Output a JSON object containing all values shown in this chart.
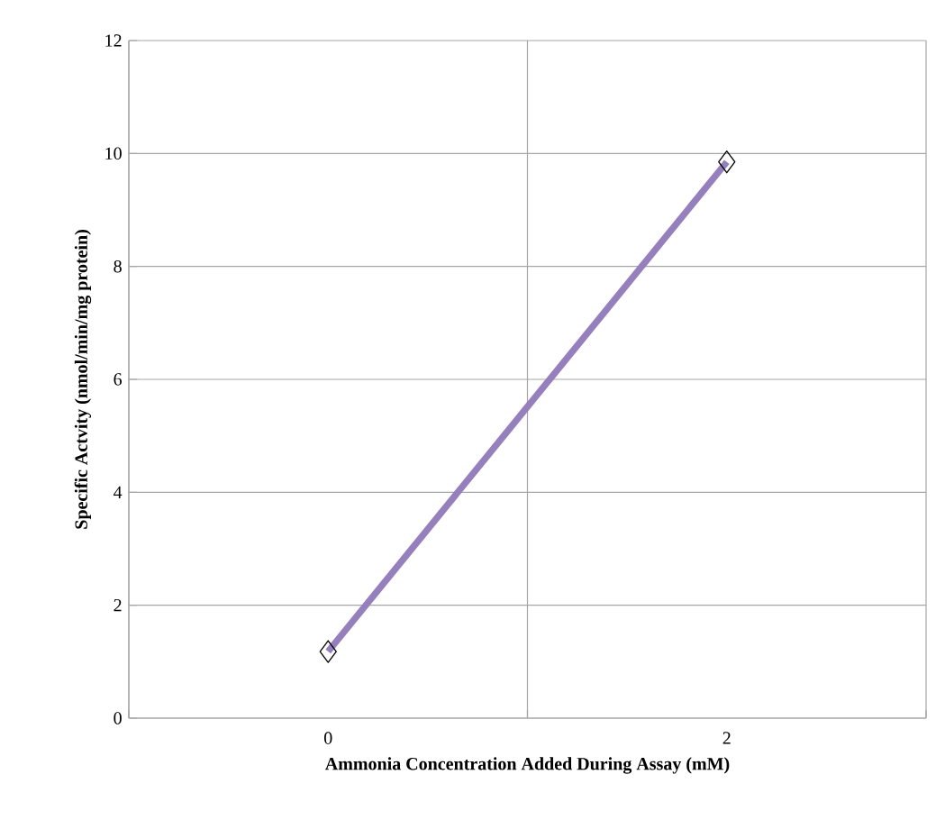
{
  "chart_data": {
    "type": "line",
    "xlabel": "Ammonia Concentration Added During Assay (mM)",
    "ylabel": "Specific Actvity (nmol/min/mg protein)",
    "categories": [
      "0",
      "2"
    ],
    "series": [
      {
        "color": "#9580bd",
        "values": [
          1.18,
          9.85
        ]
      }
    ],
    "ylim": [
      0,
      12
    ],
    "yticks": [
      0,
      2,
      4,
      6,
      8,
      10,
      12
    ],
    "grid": true,
    "marker": "diamond",
    "line_style": "solid"
  }
}
